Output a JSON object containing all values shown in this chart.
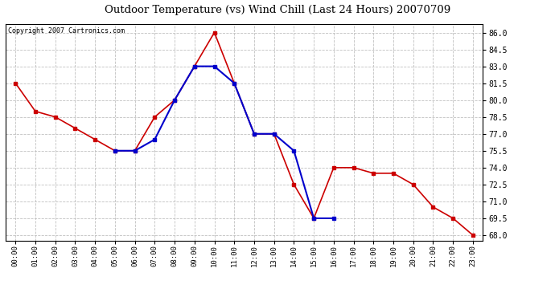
{
  "title": "Outdoor Temperature (vs) Wind Chill (Last 24 Hours) 20070709",
  "copyright": "Copyright 2007 Cartronics.com",
  "hours": [
    "00:00",
    "01:00",
    "02:00",
    "03:00",
    "04:00",
    "05:00",
    "06:00",
    "07:00",
    "08:00",
    "09:00",
    "10:00",
    "11:00",
    "12:00",
    "13:00",
    "14:00",
    "15:00",
    "16:00",
    "17:00",
    "18:00",
    "19:00",
    "20:00",
    "21:00",
    "22:00",
    "23:00"
  ],
  "temp": [
    81.5,
    79.0,
    78.5,
    77.5,
    76.5,
    75.5,
    75.5,
    78.5,
    80.0,
    83.0,
    86.0,
    81.5,
    77.0,
    77.0,
    72.5,
    69.5,
    74.0,
    74.0,
    73.5,
    73.5,
    72.5,
    70.5,
    69.5,
    68.0
  ],
  "windchill": [
    null,
    null,
    null,
    null,
    null,
    75.5,
    75.5,
    76.5,
    80.0,
    83.0,
    83.0,
    81.5,
    77.0,
    77.0,
    75.5,
    69.5,
    69.5,
    null,
    null,
    null,
    null,
    null,
    null,
    null
  ],
  "temp_color": "#cc0000",
  "windchill_color": "#0000cc",
  "bg_color": "#ffffff",
  "plot_bg_color": "#ffffff",
  "grid_color": "#c0c0c0",
  "ylim_min": 67.5,
  "ylim_max": 86.75,
  "yticks": [
    68.0,
    69.5,
    71.0,
    72.5,
    74.0,
    75.5,
    77.0,
    78.5,
    80.0,
    81.5,
    83.0,
    84.5,
    86.0
  ]
}
